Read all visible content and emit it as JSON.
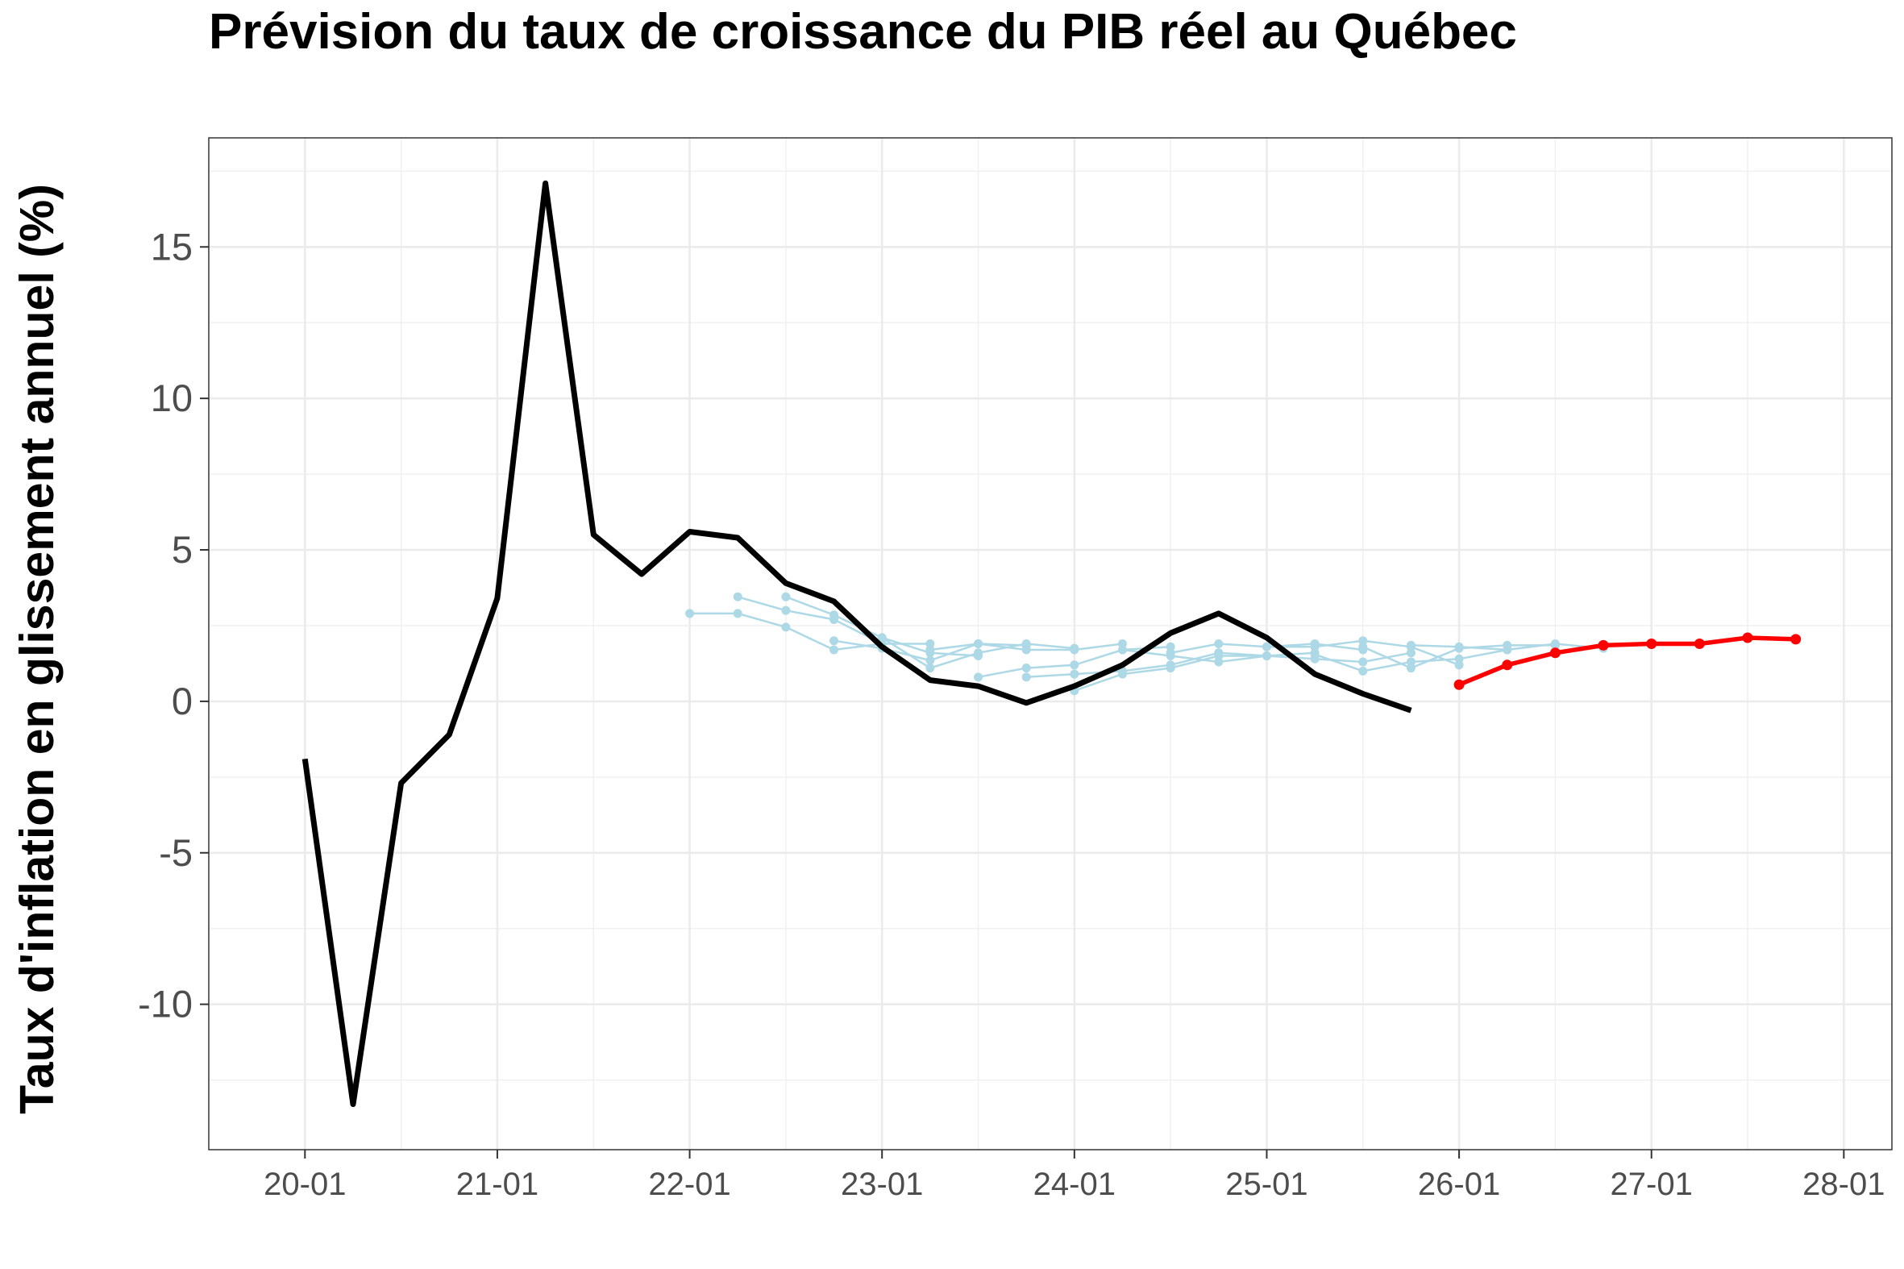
{
  "chart_data": {
    "type": "line",
    "title": "Prévision du taux de croissance du PIB réel au Québec",
    "xlabel": "",
    "ylabel": "Taux d'inflation en glissement annuel (%)",
    "x_tick_labels": [
      "20-01",
      "21-01",
      "22-01",
      "23-01",
      "24-01",
      "25-01",
      "26-01",
      "27-01",
      "28-01"
    ],
    "y_ticks": [
      15,
      10,
      5,
      0,
      -5,
      -10
    ],
    "xlim": [
      "2019-07",
      "2028-04"
    ],
    "ylim": [
      -14.8,
      18.6
    ],
    "grid": true,
    "legend": "none",
    "colors": {
      "actual": "#000000",
      "forecast": "#ff0000",
      "past_forecasts": "#add8e6"
    },
    "actual": {
      "x": [
        "2020-01",
        "2020-04",
        "2020-07",
        "2020-10",
        "2021-01",
        "2021-04",
        "2021-07",
        "2021-10",
        "2022-01",
        "2022-04",
        "2022-07",
        "2022-10",
        "2023-01",
        "2023-04",
        "2023-07",
        "2023-10",
        "2024-01",
        "2024-04",
        "2024-07",
        "2024-10",
        "2025-01",
        "2025-04",
        "2025-07",
        "2025-10"
      ],
      "y": [
        -1.9,
        -13.3,
        -2.7,
        -1.1,
        3.4,
        17.1,
        5.5,
        4.2,
        5.6,
        5.4,
        3.9,
        3.3,
        1.8,
        0.7,
        0.5,
        -0.05,
        0.5,
        1.2,
        2.25,
        2.9,
        2.1,
        0.9,
        0.25,
        -0.3
      ]
    },
    "forecast": {
      "x": [
        "2026-01",
        "2026-04",
        "2026-07",
        "2026-10",
        "2027-01",
        "2027-04",
        "2027-07",
        "2027-10"
      ],
      "y": [
        0.55,
        1.2,
        1.6,
        1.85,
        1.9,
        1.9,
        2.1,
        2.05
      ]
    },
    "past_forecasts": [
      {
        "x": [
          "2022-01",
          "2022-04",
          "2022-07",
          "2022-10",
          "2023-01"
        ],
        "y": [
          2.9,
          2.9,
          2.45,
          1.7,
          1.9
        ]
      },
      {
        "x": [
          "2022-04",
          "2022-07",
          "2022-10",
          "2023-01",
          "2023-04"
        ],
        "y": [
          3.45,
          3.0,
          2.7,
          1.9,
          1.9
        ]
      },
      {
        "x": [
          "2022-07",
          "2022-10",
          "2023-01",
          "2023-04",
          "2023-07"
        ],
        "y": [
          3.45,
          2.85,
          2.1,
          1.6,
          1.5
        ]
      },
      {
        "x": [
          "2022-10",
          "2023-01",
          "2023-04",
          "2023-07",
          "2023-10"
        ],
        "y": [
          2.0,
          1.75,
          1.35,
          1.9,
          1.85
        ]
      },
      {
        "x": [
          "2023-01",
          "2023-04",
          "2023-07",
          "2023-10",
          "2024-01"
        ],
        "y": [
          2.1,
          1.1,
          1.6,
          1.9,
          1.75
        ]
      },
      {
        "x": [
          "2023-04",
          "2023-07",
          "2023-10",
          "2024-01",
          "2024-04"
        ],
        "y": [
          1.7,
          1.9,
          1.7,
          1.7,
          1.9
        ]
      },
      {
        "x": [
          "2023-07",
          "2023-10",
          "2024-01",
          "2024-04",
          "2024-07"
        ],
        "y": [
          0.8,
          1.1,
          1.2,
          1.7,
          1.8
        ]
      },
      {
        "x": [
          "2023-10",
          "2024-01",
          "2024-04",
          "2024-07",
          "2024-10"
        ],
        "y": [
          0.8,
          0.9,
          1.0,
          1.2,
          1.6
        ]
      },
      {
        "x": [
          "2024-01",
          "2024-04",
          "2024-07",
          "2024-10",
          "2025-01"
        ],
        "y": [
          0.35,
          0.9,
          1.1,
          1.5,
          1.5
        ]
      },
      {
        "x": [
          "2024-04",
          "2024-07",
          "2024-10",
          "2025-01",
          "2025-04"
        ],
        "y": [
          1.7,
          1.5,
          1.3,
          1.5,
          1.6
        ]
      },
      {
        "x": [
          "2024-07",
          "2024-10",
          "2025-01",
          "2025-04",
          "2025-07"
        ],
        "y": [
          1.6,
          1.9,
          1.8,
          1.9,
          1.7
        ]
      },
      {
        "x": [
          "2024-10",
          "2025-01",
          "2025-04",
          "2025-07",
          "2025-10"
        ],
        "y": [
          1.6,
          1.5,
          1.4,
          1.3,
          1.6
        ]
      },
      {
        "x": [
          "2025-01",
          "2025-04",
          "2025-07",
          "2025-10",
          "2026-01"
        ],
        "y": [
          1.8,
          1.8,
          2.0,
          1.8,
          1.2
        ]
      },
      {
        "x": [
          "2025-04",
          "2025-07",
          "2025-10",
          "2026-01",
          "2026-04"
        ],
        "y": [
          1.55,
          1.0,
          1.3,
          1.4,
          1.7
        ]
      },
      {
        "x": [
          "2025-07",
          "2025-10",
          "2026-01",
          "2026-04",
          "2026-07"
        ],
        "y": [
          1.8,
          1.1,
          1.75,
          1.85,
          1.85
        ]
      },
      {
        "x": [
          "2025-10",
          "2026-01",
          "2026-04",
          "2026-07",
          "2026-10"
        ],
        "y": [
          1.85,
          1.8,
          1.7,
          1.9,
          1.75
        ]
      }
    ]
  }
}
